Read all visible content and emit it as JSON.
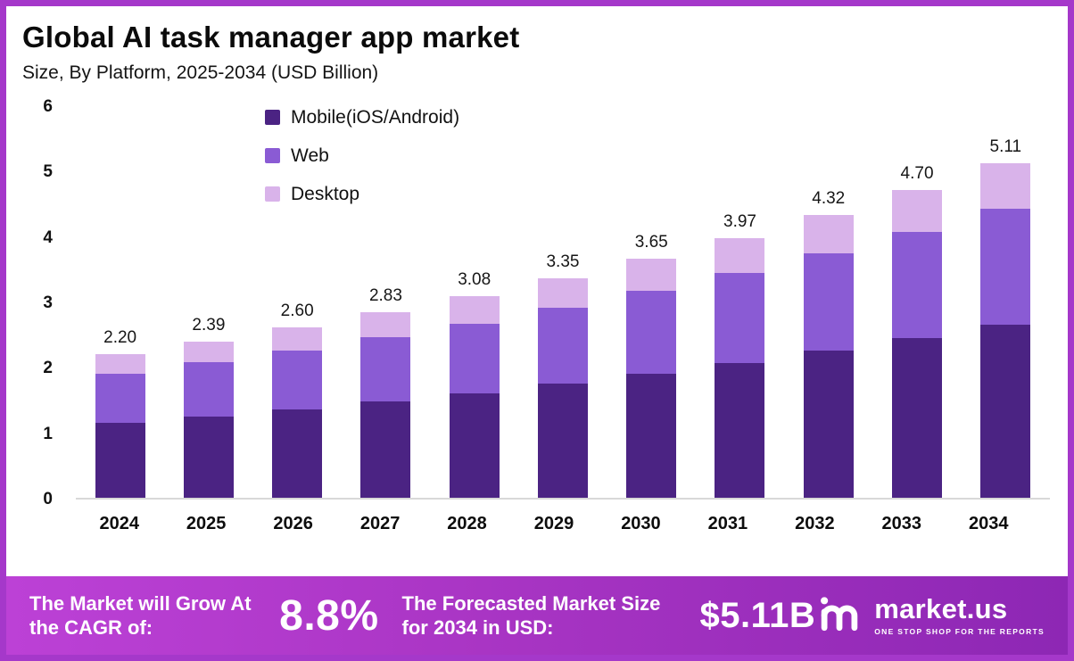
{
  "header": {
    "title": "Global AI task manager app market",
    "subtitle": "Size, By Platform, 2025-2034 (USD Billion)"
  },
  "chart_data": {
    "type": "bar",
    "stacked": true,
    "title": "Global AI task manager app market Size, By Platform, 2025-2034 (USD Billion)",
    "categories": [
      "2024",
      "2025",
      "2026",
      "2027",
      "2028",
      "2029",
      "2030",
      "2031",
      "2032",
      "2033",
      "2034"
    ],
    "series": [
      {
        "name": "Mobile(iOS/Android)",
        "color": "#4b2383",
        "values": [
          1.14,
          1.24,
          1.35,
          1.47,
          1.6,
          1.74,
          1.9,
          2.06,
          2.25,
          2.44,
          2.65
        ]
      },
      {
        "name": "Web",
        "color": "#8a5bd4",
        "values": [
          0.76,
          0.83,
          0.9,
          0.98,
          1.06,
          1.16,
          1.26,
          1.37,
          1.49,
          1.63,
          1.77
        ]
      },
      {
        "name": "Desktop",
        "color": "#d9b3ea",
        "values": [
          0.3,
          0.32,
          0.35,
          0.38,
          0.42,
          0.45,
          0.49,
          0.54,
          0.58,
          0.63,
          0.69
        ]
      }
    ],
    "totals": [
      2.2,
      2.39,
      2.6,
      2.83,
      3.08,
      3.35,
      3.65,
      3.97,
      4.32,
      4.7,
      5.11
    ],
    "totals_label": [
      "2.20",
      "2.39",
      "2.60",
      "2.83",
      "3.08",
      "3.35",
      "3.65",
      "3.97",
      "4.32",
      "4.70",
      "5.11"
    ],
    "xlabel": "",
    "ylabel": "",
    "ylim": [
      0,
      6
    ],
    "yticks": [
      0,
      1,
      2,
      3,
      4,
      5,
      6
    ],
    "grid": false,
    "legend_position": "top-center"
  },
  "footer": {
    "cagr_label": "The Market will Grow At the CAGR of:",
    "cagr_value": "8.8%",
    "forecast_label": "The Forecasted Market Size for 2034 in USD:",
    "forecast_value": "$5.11B",
    "brand_name": "market.us",
    "brand_tagline": "ONE STOP SHOP FOR THE REPORTS"
  },
  "colors": {
    "frame_border": "#a538ca",
    "banner_gradient_start": "#bc41d6",
    "banner_gradient_end": "#8d27b4",
    "mobile": "#4b2383",
    "web": "#8a5bd4",
    "desktop": "#d9b3ea"
  }
}
